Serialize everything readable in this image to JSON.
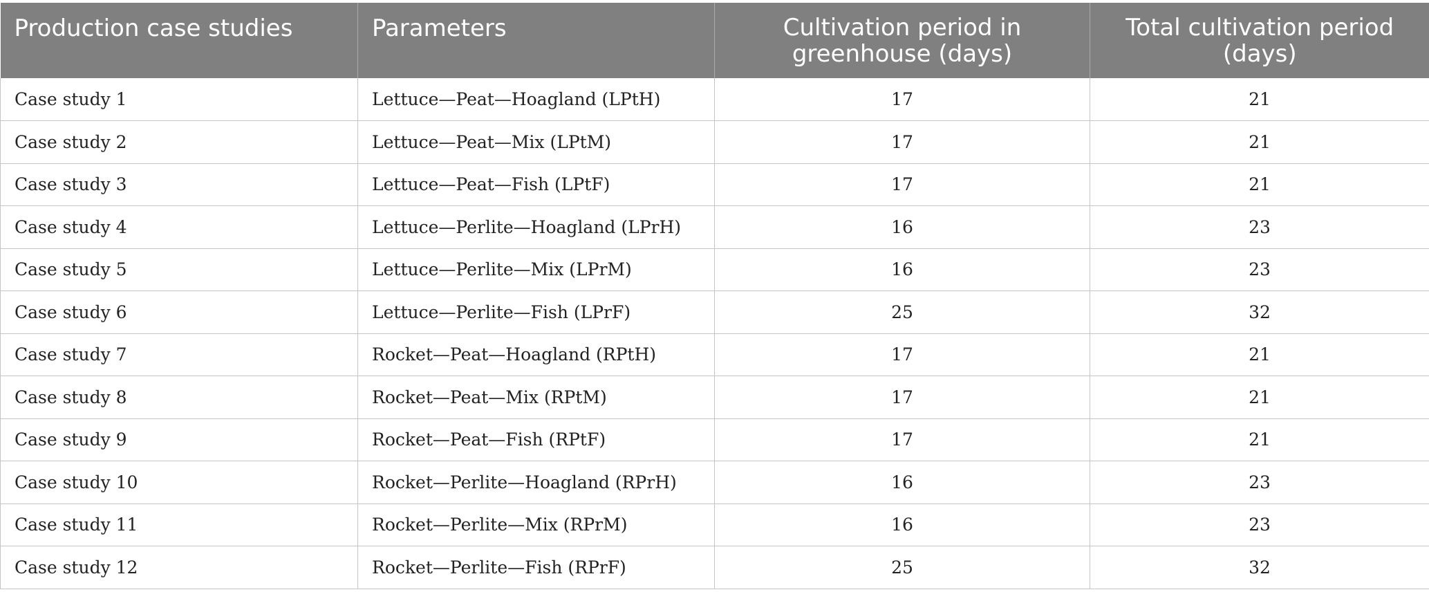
{
  "table": {
    "headers": [
      "Production case studies",
      "Parameters",
      "Cultivation period in greenhouse (days)",
      "Total cultivation period (days)"
    ],
    "rows": [
      {
        "case": "Case study 1",
        "parameters": "Lettuce—Peat—Hoagland (LPtH)",
        "greenhouse_days": "17",
        "total_days": "21"
      },
      {
        "case": "Case study 2",
        "parameters": "Lettuce—Peat—Mix (LPtM)",
        "greenhouse_days": "17",
        "total_days": "21"
      },
      {
        "case": "Case study 3",
        "parameters": "Lettuce—Peat—Fish (LPtF)",
        "greenhouse_days": "17",
        "total_days": "21"
      },
      {
        "case": "Case study 4",
        "parameters": "Lettuce—Perlite—Hoagland (LPrH)",
        "greenhouse_days": "16",
        "total_days": "23"
      },
      {
        "case": "Case study 5",
        "parameters": "Lettuce—Perlite—Mix (LPrM)",
        "greenhouse_days": "16",
        "total_days": "23"
      },
      {
        "case": "Case study 6",
        "parameters": "Lettuce—Perlite—Fish (LPrF)",
        "greenhouse_days": "25",
        "total_days": "32"
      },
      {
        "case": "Case study 7",
        "parameters": "Rocket—Peat—Hoagland (RPtH)",
        "greenhouse_days": "17",
        "total_days": "21"
      },
      {
        "case": "Case study 8",
        "parameters": "Rocket—Peat—Mix (RPtM)",
        "greenhouse_days": "17",
        "total_days": "21"
      },
      {
        "case": "Case study 9",
        "parameters": "Rocket—Peat—Fish (RPtF)",
        "greenhouse_days": "17",
        "total_days": "21"
      },
      {
        "case": "Case study 10",
        "parameters": "Rocket—Perlite—Hoagland (RPrH)",
        "greenhouse_days": "16",
        "total_days": "23"
      },
      {
        "case": "Case study 11",
        "parameters": "Rocket—Perlite—Mix (RPrM)",
        "greenhouse_days": "16",
        "total_days": "23"
      },
      {
        "case": "Case study 12",
        "parameters": "Rocket—Perlite—Fish (RPrF)",
        "greenhouse_days": "25",
        "total_days": "32"
      }
    ]
  },
  "colors": {
    "header_bg": "#7f807f",
    "header_text": "#ffffff",
    "grid": "#c4c4c4"
  }
}
